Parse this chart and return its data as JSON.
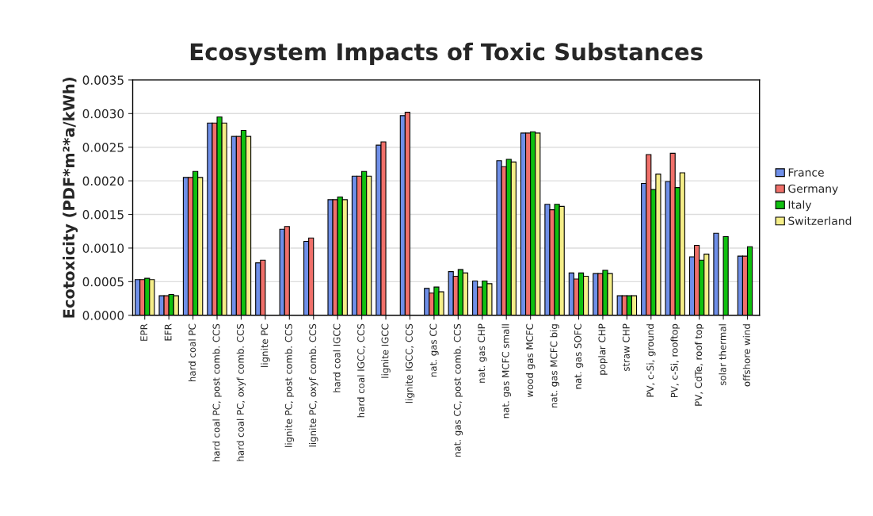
{
  "chart_data": {
    "type": "bar",
    "title": "Ecosystem Impacts of Toxic Substances",
    "ylabel": "Ecotoxicity (PDF*m²*a/kWh)",
    "categories": [
      "EPR",
      "EFR",
      "hard coal PC",
      "hard coal PC, post comb. CCS",
      "hard coal PC, oxyf comb. CCS",
      "lignite PC",
      "lignite PC, post comb. CCS",
      "lignite PC, oxyf comb. CCS",
      "hard coal IGCC",
      "hard coal IGCC, CCS",
      "lignite IGCC",
      "lignite IGCC, CCS",
      "nat. gas CC",
      "nat. gas CC, post comb. CCS",
      "nat. gas CHP",
      "nat. gas MCFC small",
      "wood gas MCFC",
      "nat. gas MCFC big",
      "nat. gas SOFC",
      "poplar CHP",
      "straw CHP",
      "PV, c-Si, ground",
      "PV, c-Si, rooftop",
      "PV, CdTe, roof top",
      "solar thermal",
      "offshore wind"
    ],
    "series": [
      {
        "name": "France",
        "color": "#6f8fe8",
        "values": [
          0.00053,
          0.00029,
          0.00205,
          0.00286,
          0.00266,
          0.00078,
          0.00128,
          0.0011,
          0.00172,
          0.00207,
          0.00253,
          0.00297,
          0.0004,
          0.00065,
          0.00051,
          0.0023,
          0.00271,
          0.00165,
          0.00063,
          0.00062,
          0.00029,
          0.00196,
          0.00199,
          0.00087,
          0.00122,
          0.00088
        ]
      },
      {
        "name": "Germany",
        "color": "#f0706a",
        "values": [
          0.00053,
          0.00029,
          0.00205,
          0.00286,
          0.00266,
          0.00082,
          0.00132,
          0.00115,
          0.00172,
          0.00207,
          0.00258,
          0.00302,
          0.00033,
          0.00058,
          0.00042,
          0.00221,
          0.00271,
          0.00157,
          0.00054,
          0.00062,
          0.00029,
          0.00239,
          0.00241,
          0.00104,
          null,
          0.00088
        ]
      },
      {
        "name": "Italy",
        "color": "#10c010",
        "values": [
          0.00055,
          0.00031,
          0.00214,
          0.00295,
          0.00275,
          null,
          null,
          null,
          0.00176,
          0.00214,
          null,
          null,
          0.00042,
          0.00068,
          0.00051,
          0.00232,
          0.00273,
          0.00165,
          0.00063,
          0.00067,
          0.00029,
          0.00187,
          0.0019,
          0.00082,
          0.00117,
          0.00102
        ]
      },
      {
        "name": "Switzerland",
        "color": "#f5ee88",
        "values": [
          0.00053,
          0.00029,
          0.00205,
          0.00286,
          0.00266,
          null,
          null,
          null,
          0.00172,
          0.00207,
          null,
          null,
          0.00035,
          0.00063,
          0.00047,
          0.00228,
          0.00271,
          0.00162,
          0.00058,
          0.00062,
          0.00029,
          0.0021,
          0.00212,
          0.00091,
          null,
          null
        ]
      }
    ],
    "ylim": [
      0,
      0.0035
    ],
    "yticks": [
      {
        "value": 0,
        "label": "0.0000"
      },
      {
        "value": 0.0005,
        "label": "0.0005"
      },
      {
        "value": 0.001,
        "label": "0.0010"
      },
      {
        "value": 0.0015,
        "label": "0.0015"
      },
      {
        "value": 0.002,
        "label": "0.0020"
      },
      {
        "value": 0.0025,
        "label": "0.0025"
      },
      {
        "value": 0.003,
        "label": "0.0030"
      },
      {
        "value": 0.0035,
        "label": "0.0035"
      }
    ],
    "grid": "y",
    "legend": "right"
  }
}
